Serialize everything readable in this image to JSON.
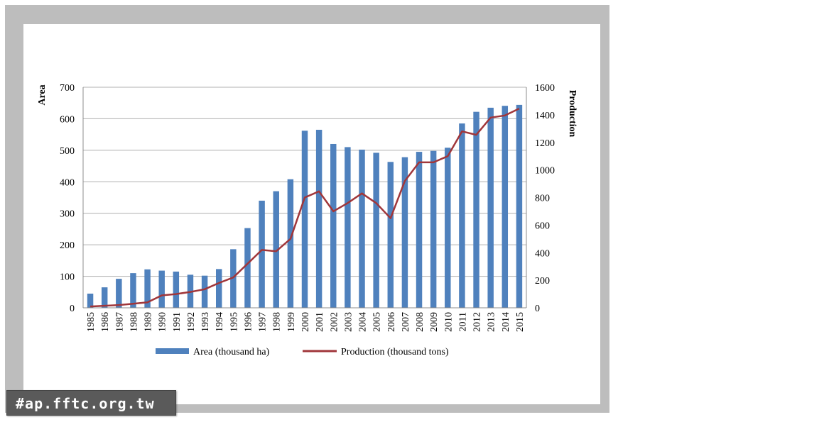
{
  "watermark": {
    "text": "#ap.fftc.org.tw"
  },
  "chart_data": {
    "type": "bar",
    "categories": [
      "1985",
      "1986",
      "1987",
      "1988",
      "1989",
      "1990",
      "1991",
      "1992",
      "1993",
      "1994",
      "1995",
      "1996",
      "1997",
      "1998",
      "1999",
      "2000",
      "2001",
      "2002",
      "2003",
      "2004",
      "2005",
      "2006",
      "2007",
      "2008",
      "2009",
      "2010",
      "2011",
      "2012",
      "2013",
      "2014",
      "2015"
    ],
    "series": [
      {
        "name": "Area (thousand ha)",
        "kind": "bar",
        "axis": "left",
        "color": "#4f81bd",
        "values": [
          45,
          65,
          92,
          110,
          122,
          118,
          115,
          105,
          102,
          123,
          186,
          253,
          340,
          370,
          408,
          562,
          565,
          520,
          510,
          502,
          492,
          463,
          478,
          495,
          498,
          508,
          585,
          622,
          635,
          641,
          644
        ]
      },
      {
        "name": "Production (thousand tons)",
        "kind": "line",
        "axis": "right",
        "color": "#a0363a",
        "values": [
          10,
          15,
          20,
          30,
          40,
          90,
          100,
          115,
          135,
          180,
          220,
          320,
          420,
          410,
          500,
          800,
          845,
          700,
          760,
          830,
          760,
          650,
          920,
          1055,
          1055,
          1100,
          1280,
          1255,
          1380,
          1395,
          1445
        ]
      }
    ],
    "ylabel": "Area",
    "y2label": "Production",
    "ylim": [
      0,
      700
    ],
    "y2lim": [
      0,
      1600
    ],
    "yticks": [
      "0",
      "100",
      "200",
      "300",
      "400",
      "500",
      "600",
      "700"
    ],
    "y2ticks": [
      "0",
      "200",
      "400",
      "600",
      "800",
      "1000",
      "1200",
      "1400",
      "1600"
    ],
    "grid": true,
    "legend": "bottom"
  }
}
